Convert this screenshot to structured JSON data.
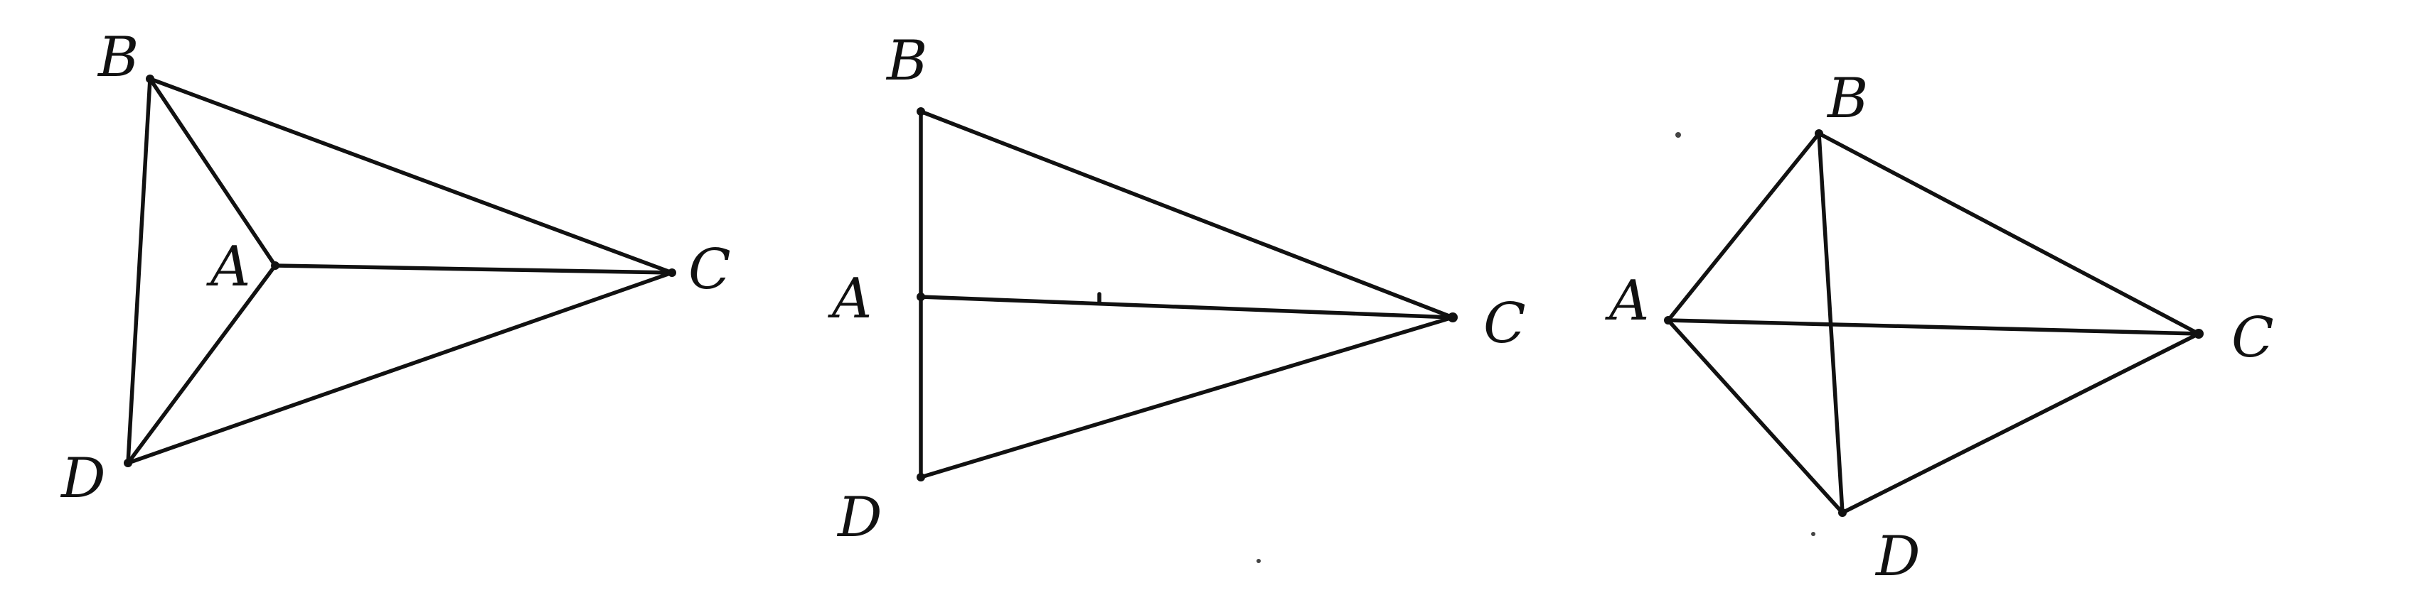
{
  "figures": [
    {
      "id": "fig1",
      "labels": {
        "A": "A",
        "B": "B",
        "C": "C",
        "D": "D"
      }
    },
    {
      "id": "fig2",
      "labels": {
        "A": "A",
        "B": "B",
        "C": "C",
        "D": "D"
      }
    },
    {
      "id": "fig3",
      "labels": {
        "A": "A",
        "B": "B",
        "C": "C",
        "D": "D"
      }
    }
  ]
}
